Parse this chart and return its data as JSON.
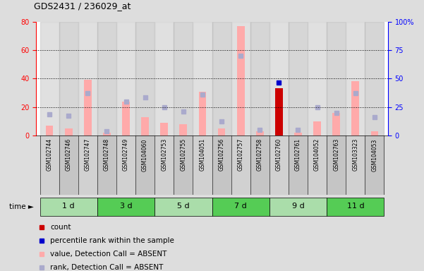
{
  "title": "GDS2431 / 236029_at",
  "samples": [
    "GSM102744",
    "GSM102746",
    "GSM102747",
    "GSM102748",
    "GSM102749",
    "GSM104060",
    "GSM102753",
    "GSM102755",
    "GSM104051",
    "GSM102756",
    "GSM102757",
    "GSM102758",
    "GSM102760",
    "GSM102761",
    "GSM104052",
    "GSM102763",
    "GSM103323",
    "GSM104053"
  ],
  "time_groups": [
    {
      "label": "1 d",
      "start": 0,
      "end": 3
    },
    {
      "label": "3 d",
      "start": 3,
      "end": 6
    },
    {
      "label": "5 d",
      "start": 6,
      "end": 9
    },
    {
      "label": "7 d",
      "start": 9,
      "end": 12
    },
    {
      "label": "9 d",
      "start": 12,
      "end": 15
    },
    {
      "label": "11 d",
      "start": 15,
      "end": 18
    }
  ],
  "value_absent": [
    7,
    5,
    39,
    2,
    24,
    13,
    9,
    8,
    31,
    5,
    77,
    3,
    0,
    2,
    10,
    16,
    38,
    3
  ],
  "rank_absent": [
    15,
    14,
    30,
    3,
    24,
    27,
    20,
    17,
    29,
    10,
    56,
    4,
    0,
    4,
    20,
    16,
    30,
    13
  ],
  "count_present": [
    0,
    0,
    0,
    0,
    0,
    0,
    0,
    0,
    0,
    0,
    0,
    0,
    33,
    0,
    0,
    0,
    0,
    0
  ],
  "percentile_present": [
    0,
    0,
    0,
    0,
    0,
    0,
    0,
    0,
    0,
    0,
    0,
    0,
    37,
    0,
    0,
    0,
    0,
    0
  ],
  "ylim_left": [
    0,
    80
  ],
  "ylim_right": [
    0,
    100
  ],
  "yticks_left": [
    0,
    20,
    40,
    60,
    80
  ],
  "yticks_right": [
    0,
    25,
    50,
    75,
    100
  ],
  "ytick_labels_right": [
    "0",
    "25",
    "50",
    "75",
    "100%"
  ],
  "color_value_absent": "#ffaaaa",
  "color_rank_absent": "#aaaacc",
  "color_count_present": "#cc0000",
  "color_percentile_present": "#0000cc",
  "bg_color": "#dddddd",
  "plot_bg": "#ffffff",
  "col_even": "#cccccc",
  "col_odd": "#bbbbbb",
  "legend_items": [
    {
      "color": "#cc0000",
      "label": "count"
    },
    {
      "color": "#0000cc",
      "label": "percentile rank within the sample"
    },
    {
      "color": "#ffaaaa",
      "label": "value, Detection Call = ABSENT"
    },
    {
      "color": "#aaaacc",
      "label": "rank, Detection Call = ABSENT"
    }
  ],
  "group_colors": [
    "#aaddaa",
    "#55cc55"
  ]
}
